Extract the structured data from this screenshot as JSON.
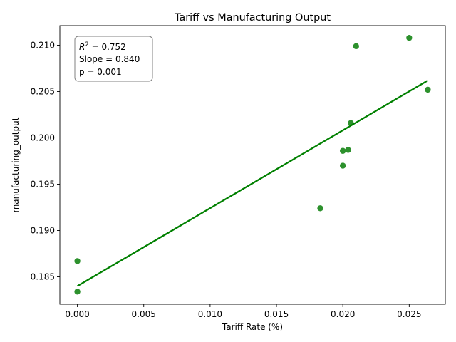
{
  "chart_data": {
    "type": "scatter",
    "title": "Tariff vs Manufacturing Output",
    "xlabel": "Tariff Rate (%)",
    "ylabel": "manufacturing_output",
    "xlim": [
      -0.00132,
      0.02772
    ],
    "ylim": [
      0.18204,
      0.21212
    ],
    "xticks": [
      0.0,
      0.005,
      0.01,
      0.015,
      0.02,
      0.025
    ],
    "xtick_labels": [
      "0.000",
      "0.005",
      "0.010",
      "0.015",
      "0.020",
      "0.025"
    ],
    "yticks": [
      0.185,
      0.19,
      0.195,
      0.2,
      0.205,
      0.21
    ],
    "ytick_labels": [
      "0.185",
      "0.190",
      "0.195",
      "0.200",
      "0.205",
      "0.210"
    ],
    "grid": false,
    "legend": "none",
    "points": [
      {
        "x": 0.0,
        "y": 0.1867
      },
      {
        "x": 0.0,
        "y": 0.1834
      },
      {
        "x": 0.0183,
        "y": 0.1924
      },
      {
        "x": 0.02,
        "y": 0.197
      },
      {
        "x": 0.02,
        "y": 0.1986
      },
      {
        "x": 0.0204,
        "y": 0.1987
      },
      {
        "x": 0.0206,
        "y": 0.2016
      },
      {
        "x": 0.021,
        "y": 0.2099
      },
      {
        "x": 0.025,
        "y": 0.2108
      },
      {
        "x": 0.0264,
        "y": 0.2052
      }
    ],
    "fit_line": {
      "x": [
        0.0,
        0.0264
      ],
      "y": [
        0.184,
        0.2062
      ]
    },
    "annotation": {
      "r2_label": "R",
      "r2_sup": "2",
      "r2_value": " = 0.752",
      "slope": "Slope = 0.840",
      "p_value": "p = 0.001",
      "position": "top-left"
    },
    "point_color": "#228B22",
    "line_color": "#008000"
  }
}
